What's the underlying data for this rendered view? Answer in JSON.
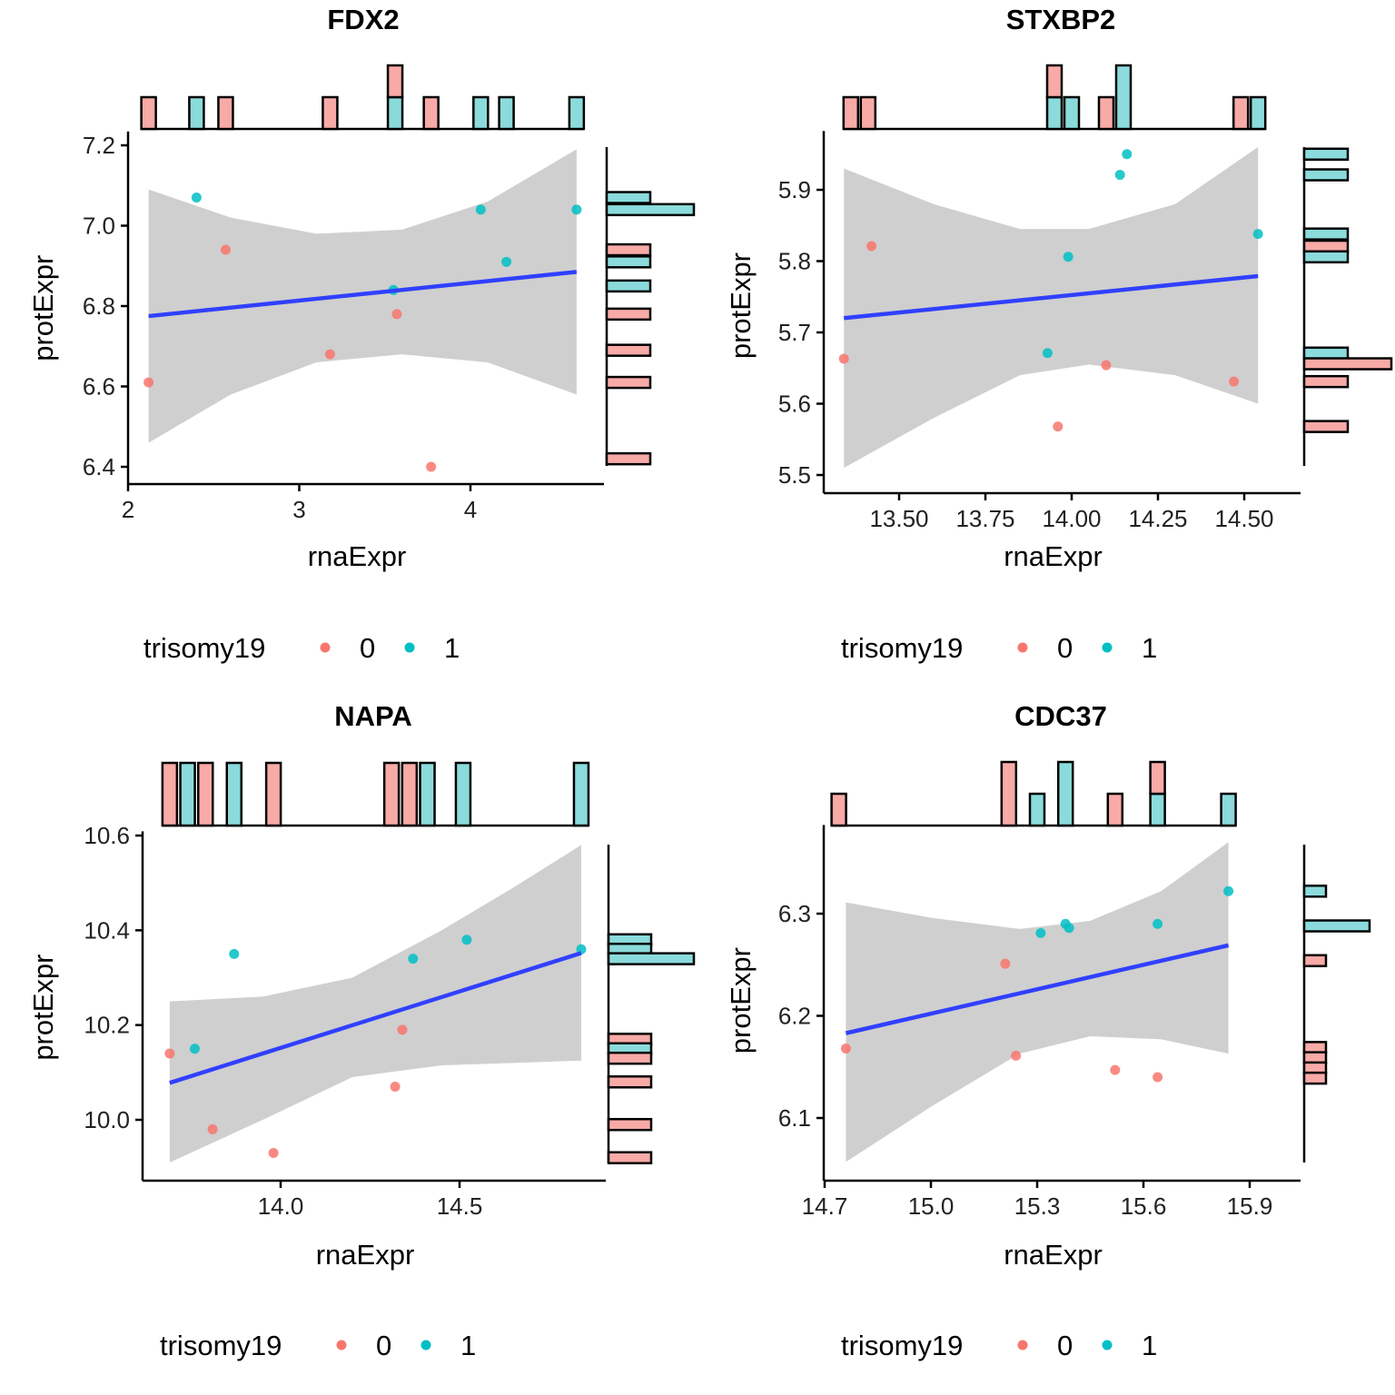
{
  "colors": {
    "group0": "#F8766D",
    "group1": "#00BFC4",
    "hist0": "#F8AAA7",
    "hist1": "#8BDBDC",
    "fit_line": "#3040FF",
    "ci_band": "#CFCFCF"
  },
  "legend": {
    "title": "trisomy19",
    "items": [
      {
        "label": "0",
        "group": 0
      },
      {
        "label": "1",
        "group": 1
      }
    ]
  },
  "chart_data": [
    {
      "type": "scatter",
      "title": "FDX2",
      "xlabel": "rnaExpr",
      "ylabel": "protExpr",
      "xlim": [
        2.0,
        4.65
      ],
      "ylim": [
        6.36,
        7.23
      ],
      "xticks": [
        2,
        3,
        4
      ],
      "xtick_labels": [
        "2",
        "3",
        "4"
      ],
      "yticks": [
        6.4,
        6.6,
        6.8,
        7.0,
        7.2
      ],
      "ytick_labels": [
        "6.4",
        "6.6",
        "6.8",
        "7.0",
        "7.2"
      ],
      "points": [
        {
          "x": 2.12,
          "y": 6.61,
          "group": 0
        },
        {
          "x": 2.4,
          "y": 7.07,
          "group": 1
        },
        {
          "x": 2.57,
          "y": 6.94,
          "group": 0
        },
        {
          "x": 3.18,
          "y": 6.68,
          "group": 0
        },
        {
          "x": 3.55,
          "y": 6.84,
          "group": 1
        },
        {
          "x": 3.57,
          "y": 6.78,
          "group": 0
        },
        {
          "x": 3.77,
          "y": 6.4,
          "group": 0
        },
        {
          "x": 4.06,
          "y": 7.04,
          "group": 1
        },
        {
          "x": 4.21,
          "y": 6.91,
          "group": 1
        },
        {
          "x": 4.62,
          "y": 7.04,
          "group": 1
        }
      ],
      "fit": {
        "x0": 2.12,
        "y0": 6.775,
        "x1": 4.62,
        "y1": 6.885
      },
      "ci_band": {
        "x": [
          2.12,
          2.6,
          3.1,
          3.6,
          4.1,
          4.62
        ],
        "upper": [
          7.09,
          7.02,
          6.98,
          6.99,
          7.06,
          7.19
        ],
        "lower": [
          6.46,
          6.58,
          6.66,
          6.68,
          6.66,
          6.58
        ]
      },
      "top_hist": {
        "bins": [
          {
            "x": 2.12,
            "count0": 1,
            "count1": 0
          },
          {
            "x": 2.4,
            "count0": 0,
            "count1": 1
          },
          {
            "x": 2.57,
            "count0": 1,
            "count1": 0
          },
          {
            "x": 3.18,
            "count0": 1,
            "count1": 0
          },
          {
            "x": 3.56,
            "count0": 1,
            "count1": 1
          },
          {
            "x": 3.77,
            "count0": 1,
            "count1": 0
          },
          {
            "x": 4.06,
            "count0": 0,
            "count1": 1
          },
          {
            "x": 4.21,
            "count0": 0,
            "count1": 1
          },
          {
            "x": 4.62,
            "count0": 0,
            "count1": 1
          }
        ],
        "max": 2
      },
      "side_hist": {
        "bins": [
          {
            "y": 7.07,
            "count0": 0,
            "count1": 1
          },
          {
            "y": 7.04,
            "count0": 0,
            "count1": 2
          },
          {
            "y": 6.94,
            "count0": 1,
            "count1": 0
          },
          {
            "y": 6.91,
            "count0": 0,
            "count1": 1
          },
          {
            "y": 6.85,
            "count0": 0,
            "count1": 1
          },
          {
            "y": 6.78,
            "count0": 1,
            "count1": 0
          },
          {
            "y": 6.69,
            "count0": 1,
            "count1": 0
          },
          {
            "y": 6.61,
            "count0": 1,
            "count1": 0
          },
          {
            "y": 6.42,
            "count0": 1,
            "count1": 0
          }
        ],
        "max": 2
      }
    },
    {
      "type": "scatter",
      "title": "STXBP2",
      "xlabel": "rnaExpr",
      "ylabel": "protExpr",
      "xlim": [
        13.29,
        14.56
      ],
      "ylim": [
        5.495,
        5.98
      ],
      "xticks": [
        13.5,
        13.75,
        14.0,
        14.25,
        14.5
      ],
      "xtick_labels": [
        "13.50",
        "13.75",
        "14.00",
        "14.25",
        "14.50"
      ],
      "yticks": [
        5.5,
        5.6,
        5.7,
        5.8,
        5.9
      ],
      "ytick_labels": [
        "5.5",
        "5.6",
        "5.7",
        "5.8",
        "5.9"
      ],
      "points": [
        {
          "x": 13.34,
          "y": 5.663,
          "group": 0
        },
        {
          "x": 13.42,
          "y": 5.821,
          "group": 0
        },
        {
          "x": 13.93,
          "y": 5.671,
          "group": 1
        },
        {
          "x": 13.96,
          "y": 5.568,
          "group": 0
        },
        {
          "x": 13.99,
          "y": 5.806,
          "group": 1
        },
        {
          "x": 14.1,
          "y": 5.654,
          "group": 0
        },
        {
          "x": 14.14,
          "y": 5.921,
          "group": 1
        },
        {
          "x": 14.16,
          "y": 5.95,
          "group": 1
        },
        {
          "x": 14.47,
          "y": 5.631,
          "group": 0
        },
        {
          "x": 14.54,
          "y": 5.838,
          "group": 1
        }
      ],
      "fit": {
        "x0": 13.34,
        "y0": 5.72,
        "x1": 14.54,
        "y1": 5.779
      },
      "ci_band": {
        "x": [
          13.34,
          13.6,
          13.85,
          14.05,
          14.3,
          14.54
        ],
        "upper": [
          5.93,
          5.88,
          5.845,
          5.845,
          5.88,
          5.96
        ],
        "lower": [
          5.51,
          5.58,
          5.64,
          5.655,
          5.64,
          5.6
        ]
      },
      "top_hist": {
        "bins": [
          {
            "x": 13.36,
            "count0": 1,
            "count1": 0
          },
          {
            "x": 13.41,
            "count0": 1,
            "count1": 0
          },
          {
            "x": 13.95,
            "count0": 1,
            "count1": 1
          },
          {
            "x": 14.0,
            "count0": 0,
            "count1": 1
          },
          {
            "x": 14.1,
            "count0": 1,
            "count1": 0
          },
          {
            "x": 14.15,
            "count0": 0,
            "count1": 2
          },
          {
            "x": 14.49,
            "count0": 1,
            "count1": 0
          },
          {
            "x": 14.54,
            "count0": 0,
            "count1": 1
          }
        ],
        "max": 2
      },
      "side_hist": {
        "bins": [
          {
            "y": 5.95,
            "count0": 0,
            "count1": 1
          },
          {
            "y": 5.921,
            "count0": 0,
            "count1": 1
          },
          {
            "y": 5.838,
            "count0": 0,
            "count1": 1
          },
          {
            "y": 5.821,
            "count0": 1,
            "count1": 0
          },
          {
            "y": 5.806,
            "count0": 0,
            "count1": 1
          },
          {
            "y": 5.671,
            "count0": 0,
            "count1": 1
          },
          {
            "y": 5.656,
            "count0": 2,
            "count1": 0
          },
          {
            "y": 5.631,
            "count0": 1,
            "count1": 0
          },
          {
            "y": 5.568,
            "count0": 1,
            "count1": 0
          }
        ],
        "max": 2
      }
    },
    {
      "type": "scatter",
      "title": "NAPA",
      "xlabel": "rnaExpr",
      "ylabel": "protExpr",
      "xlim": [
        13.62,
        14.87
      ],
      "ylim": [
        9.87,
        10.605
      ],
      "xticks": [
        14.0,
        14.5
      ],
      "xtick_labels": [
        "14.0",
        "14.5"
      ],
      "yticks": [
        10.0,
        10.2,
        10.4,
        10.6
      ],
      "ytick_labels": [
        "10.0",
        "10.2",
        "10.4",
        "10.6"
      ],
      "points": [
        {
          "x": 13.69,
          "y": 10.14,
          "group": 0
        },
        {
          "x": 13.76,
          "y": 10.15,
          "group": 1
        },
        {
          "x": 13.81,
          "y": 9.98,
          "group": 0
        },
        {
          "x": 13.87,
          "y": 10.35,
          "group": 1
        },
        {
          "x": 13.98,
          "y": 9.93,
          "group": 0
        },
        {
          "x": 14.32,
          "y": 10.07,
          "group": 0
        },
        {
          "x": 14.34,
          "y": 10.19,
          "group": 0
        },
        {
          "x": 14.37,
          "y": 10.34,
          "group": 1
        },
        {
          "x": 14.52,
          "y": 10.38,
          "group": 1
        },
        {
          "x": 14.84,
          "y": 10.36,
          "group": 1
        }
      ],
      "fit": {
        "x0": 13.69,
        "y0": 10.078,
        "x1": 14.84,
        "y1": 10.352
      },
      "ci_band": {
        "x": [
          13.69,
          13.95,
          14.2,
          14.45,
          14.65,
          14.84
        ],
        "upper": [
          10.25,
          10.26,
          10.3,
          10.4,
          10.49,
          10.58
        ],
        "lower": [
          9.91,
          10.0,
          10.09,
          10.115,
          10.12,
          10.125
        ]
      },
      "top_hist": {
        "bins": [
          {
            "x": 13.69,
            "count0": 1,
            "count1": 0
          },
          {
            "x": 13.74,
            "count0": 0,
            "count1": 1
          },
          {
            "x": 13.79,
            "count0": 1,
            "count1": 0
          },
          {
            "x": 13.87,
            "count0": 0,
            "count1": 1
          },
          {
            "x": 13.98,
            "count0": 1,
            "count1": 0
          },
          {
            "x": 14.31,
            "count0": 1,
            "count1": 0
          },
          {
            "x": 14.36,
            "count0": 1,
            "count1": 0
          },
          {
            "x": 14.41,
            "count0": 0,
            "count1": 1
          },
          {
            "x": 14.51,
            "count0": 0,
            "count1": 1
          },
          {
            "x": 14.84,
            "count0": 0,
            "count1": 1
          }
        ],
        "max": 1
      },
      "side_hist": {
        "bins": [
          {
            "y": 10.38,
            "count0": 0,
            "count1": 1
          },
          {
            "y": 10.36,
            "count0": 0,
            "count1": 1
          },
          {
            "y": 10.34,
            "count0": 0,
            "count1": 2
          },
          {
            "y": 10.17,
            "count0": 1,
            "count1": 0
          },
          {
            "y": 10.15,
            "count0": 0,
            "count1": 1
          },
          {
            "y": 10.13,
            "count0": 1,
            "count1": 0
          },
          {
            "y": 10.08,
            "count0": 1,
            "count1": 0
          },
          {
            "y": 9.99,
            "count0": 1,
            "count1": 0
          },
          {
            "y": 9.92,
            "count0": 1,
            "count1": 0
          }
        ],
        "max": 2
      }
    },
    {
      "type": "scatter",
      "title": "CDC37",
      "xlabel": "rnaExpr",
      "ylabel": "protExpr",
      "xlim": [
        14.695,
        15.9
      ],
      "ylim": [
        6.045,
        6.385
      ],
      "xticks": [
        14.7,
        15.0,
        15.3,
        15.6,
        15.9
      ],
      "xtick_labels": [
        "14.7",
        "15.0",
        "15.3",
        "15.6",
        "15.9"
      ],
      "yticks": [
        6.1,
        6.2,
        6.3
      ],
      "ytick_labels": [
        "6.1",
        "6.2",
        "6.3"
      ],
      "points": [
        {
          "x": 14.76,
          "y": 6.168,
          "group": 0
        },
        {
          "x": 15.21,
          "y": 6.251,
          "group": 0
        },
        {
          "x": 15.24,
          "y": 6.161,
          "group": 0
        },
        {
          "x": 15.31,
          "y": 6.281,
          "group": 1
        },
        {
          "x": 15.38,
          "y": 6.29,
          "group": 1
        },
        {
          "x": 15.39,
          "y": 6.286,
          "group": 1
        },
        {
          "x": 15.52,
          "y": 6.147,
          "group": 0
        },
        {
          "x": 15.64,
          "y": 6.29,
          "group": 1
        },
        {
          "x": 15.64,
          "y": 6.14,
          "group": 0
        },
        {
          "x": 15.84,
          "y": 6.322,
          "group": 1
        }
      ],
      "fit": {
        "x0": 14.76,
        "y0": 6.183,
        "x1": 15.84,
        "y1": 6.269
      },
      "ci_band": {
        "x": [
          14.76,
          15.0,
          15.25,
          15.45,
          15.65,
          15.84
        ],
        "upper": [
          6.311,
          6.296,
          6.285,
          6.293,
          6.322,
          6.37
        ],
        "lower": [
          6.057,
          6.111,
          6.163,
          6.18,
          6.177,
          6.163
        ]
      },
      "top_hist": {
        "bins": [
          {
            "x": 14.74,
            "count0": 1,
            "count1": 0
          },
          {
            "x": 15.22,
            "count0": 2,
            "count1": 0
          },
          {
            "x": 15.3,
            "count0": 0,
            "count1": 1
          },
          {
            "x": 15.38,
            "count0": 0,
            "count1": 2
          },
          {
            "x": 15.52,
            "count0": 1,
            "count1": 0
          },
          {
            "x": 15.64,
            "count0": 1,
            "count1": 1
          },
          {
            "x": 15.84,
            "count0": 0,
            "count1": 1
          }
        ],
        "max": 2
      },
      "side_hist": {
        "bins": [
          {
            "y": 6.322,
            "count0": 0,
            "count1": 1
          },
          {
            "y": 6.288,
            "count0": 0,
            "count1": 3
          },
          {
            "y": 6.254,
            "count0": 1,
            "count1": 0
          },
          {
            "y": 6.169,
            "count0": 1,
            "count1": 0
          },
          {
            "y": 6.159,
            "count0": 1,
            "count1": 0
          },
          {
            "y": 6.149,
            "count0": 1,
            "count1": 0
          },
          {
            "y": 6.139,
            "count0": 1,
            "count1": 0
          }
        ],
        "max": 3
      }
    }
  ]
}
